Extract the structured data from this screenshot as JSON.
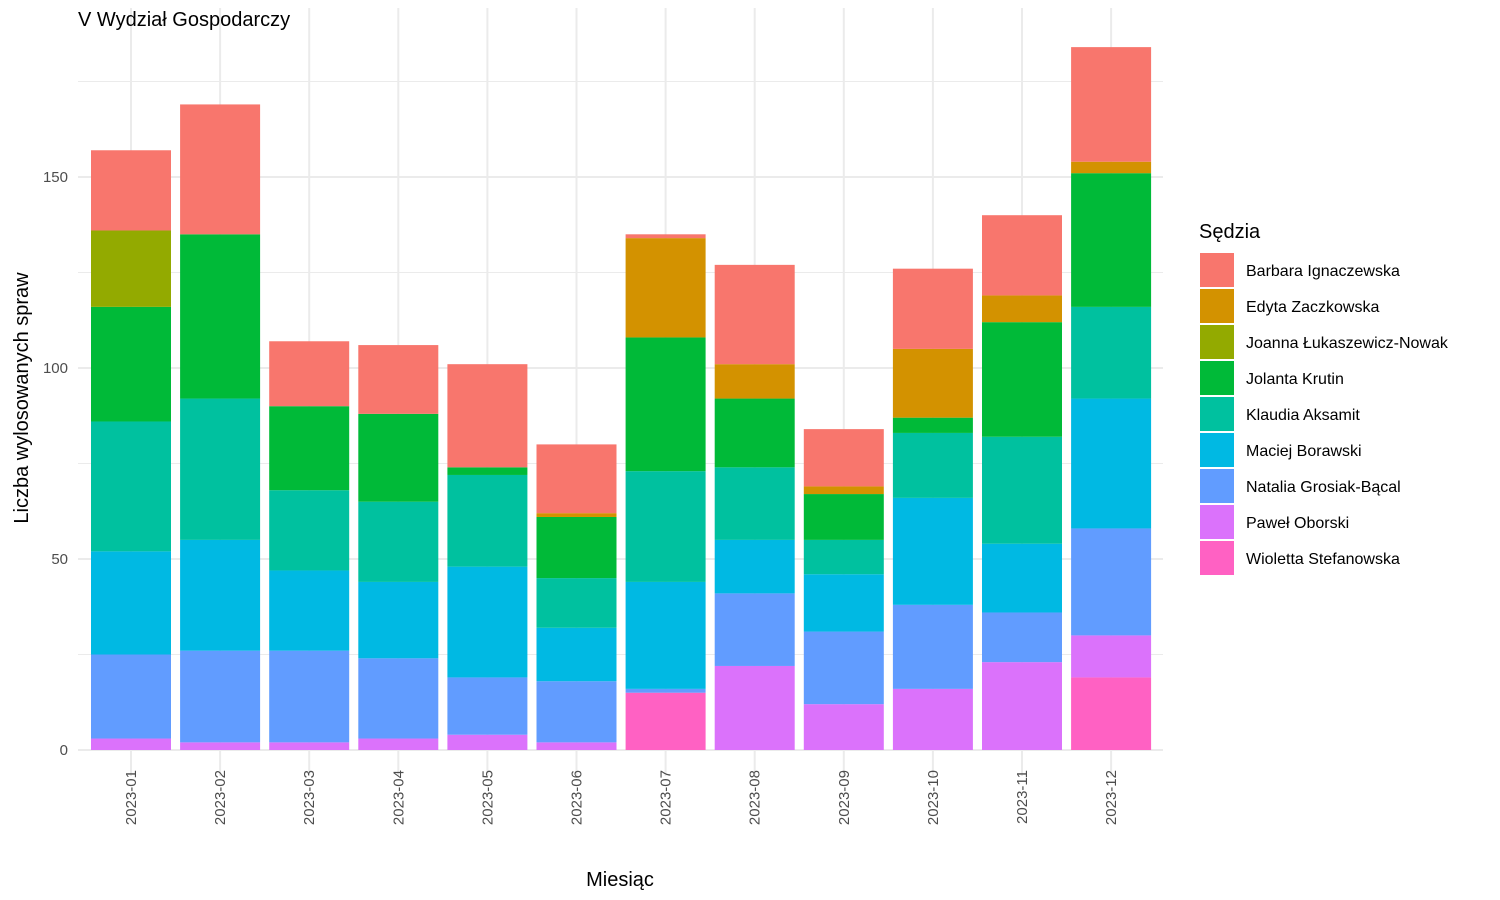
{
  "chart_data": {
    "type": "bar",
    "stacked": true,
    "title": "V Wydział Gospodarczy",
    "xlabel": "Miesiąc",
    "ylabel": "Liczba wylosowanych spraw",
    "ylim": [
      0,
      190
    ],
    "yticks": [
      0,
      50,
      100,
      150
    ],
    "grid": true,
    "legend_title": "Sędzia",
    "legend_position": "right",
    "categories": [
      "2023-01",
      "2023-02",
      "2023-03",
      "2023-04",
      "2023-05",
      "2023-06",
      "2023-07",
      "2023-08",
      "2023-09",
      "2023-10",
      "2023-11",
      "2023-12"
    ],
    "series": [
      {
        "name": "Barbara Ignaczewska",
        "color": "#F8766D",
        "values": [
          21,
          34,
          17,
          18,
          27,
          18,
          1,
          26,
          15,
          21,
          21,
          30
        ]
      },
      {
        "name": "Edyta Zaczkowska",
        "color": "#D39200",
        "values": [
          0,
          0,
          0,
          0,
          0,
          1,
          26,
          9,
          2,
          18,
          7,
          3
        ]
      },
      {
        "name": "Joanna Łukaszewicz-Nowak",
        "color": "#93AA00",
        "values": [
          20,
          0,
          0,
          0,
          0,
          0,
          0,
          0,
          0,
          0,
          0,
          0
        ]
      },
      {
        "name": "Jolanta Krutin",
        "color": "#00BA38",
        "values": [
          30,
          43,
          22,
          23,
          2,
          16,
          35,
          18,
          12,
          4,
          30,
          35
        ]
      },
      {
        "name": "Klaudia Aksamit",
        "color": "#00C19F",
        "values": [
          34,
          37,
          21,
          21,
          24,
          13,
          29,
          19,
          9,
          17,
          28,
          24
        ]
      },
      {
        "name": "Maciej Borawski",
        "color": "#00B9E3",
        "values": [
          27,
          29,
          21,
          20,
          29,
          14,
          28,
          14,
          15,
          28,
          18,
          34
        ]
      },
      {
        "name": "Natalia Grosiak-Bącal",
        "color": "#619CFF",
        "values": [
          22,
          24,
          24,
          21,
          15,
          16,
          1,
          19,
          19,
          22,
          13,
          28
        ]
      },
      {
        "name": "Paweł Oborski",
        "color": "#DB72FB",
        "values": [
          3,
          2,
          2,
          3,
          4,
          2,
          0,
          22,
          12,
          16,
          23,
          11
        ]
      },
      {
        "name": "Wioletta Stefanowska",
        "color": "#FF61C3",
        "values": [
          0,
          0,
          0,
          0,
          0,
          0,
          15,
          0,
          0,
          0,
          0,
          19
        ]
      }
    ]
  }
}
